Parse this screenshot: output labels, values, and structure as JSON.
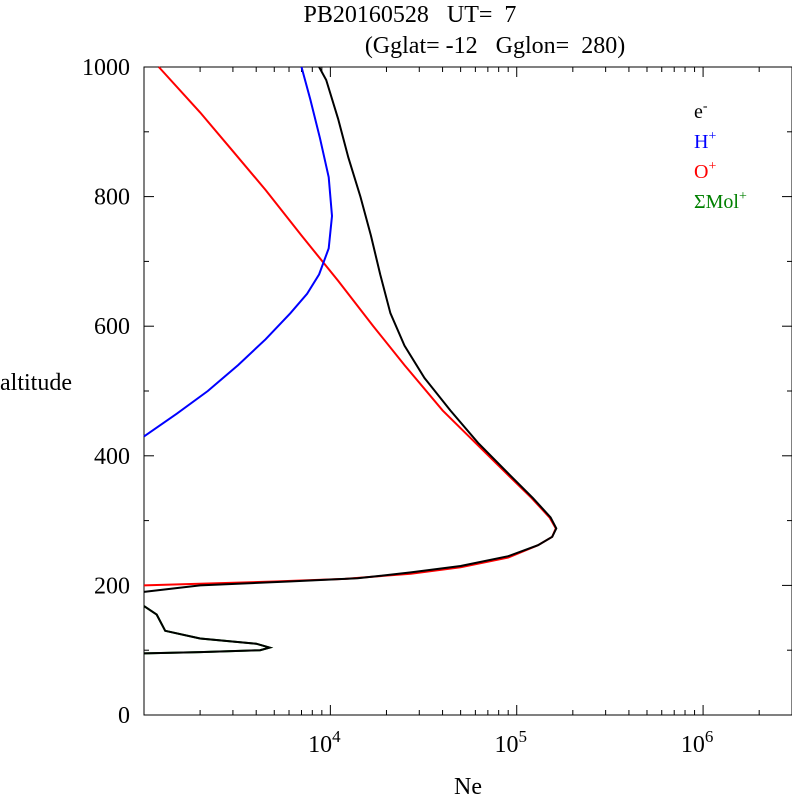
{
  "chart_data": {
    "type": "line",
    "title_line1": "PB20160528   UT=  7",
    "title_line2": "(Gglat= -12   Gglon=  280)",
    "xlabel": "Ne",
    "ylabel": "altitude",
    "x_scale": "log",
    "xlim": [
      1000,
      3000000
    ],
    "ylim": [
      0,
      1000
    ],
    "y_ticks": [
      0,
      200,
      400,
      600,
      800,
      1000
    ],
    "y_tick_labels": [
      "0",
      "200",
      "400",
      "600",
      "800",
      "1000"
    ],
    "x_ticks": [
      10000,
      100000,
      1000000
    ],
    "x_tick_labels": [
      {
        "base": "10",
        "exp": "4"
      },
      {
        "base": "10",
        "exp": "5"
      },
      {
        "base": "10",
        "exp": "6"
      }
    ],
    "legend": [
      {
        "base": "e",
        "sup": "-",
        "color": "#000000"
      },
      {
        "base": "H",
        "sup": "+",
        "color": "#0000ff"
      },
      {
        "base": "O",
        "sup": "+",
        "color": "#ff0000"
      },
      {
        "base": "ΣMol",
        "sup": "+",
        "color": "#008000"
      }
    ],
    "legend_position": "top-right",
    "series": [
      {
        "name": "ΣMol+",
        "color": "#008000",
        "points": [
          [
            1000,
            168
          ],
          [
            1170,
            155
          ],
          [
            1300,
            130
          ],
          [
            2000,
            118
          ],
          [
            4000,
            110
          ],
          [
            4720,
            104
          ],
          [
            4200,
            100
          ],
          [
            2000,
            97
          ],
          [
            1000,
            95
          ]
        ]
      },
      {
        "name": "O+",
        "color": "#ff0000",
        "points": [
          [
            1000,
            200
          ],
          [
            5000,
            206
          ],
          [
            12000,
            210
          ],
          [
            27000,
            218
          ],
          [
            50000,
            228
          ],
          [
            90000,
            243
          ],
          [
            130000,
            262
          ],
          [
            155000,
            275
          ],
          [
            162000,
            288
          ],
          [
            150000,
            305
          ],
          [
            120000,
            335
          ],
          [
            90000,
            370
          ],
          [
            60000,
            420
          ],
          [
            40000,
            470
          ],
          [
            25000,
            540
          ],
          [
            17000,
            600
          ],
          [
            11000,
            670
          ],
          [
            7000,
            740
          ],
          [
            4500,
            810
          ],
          [
            3000,
            870
          ],
          [
            2000,
            930
          ],
          [
            1200,
            1000
          ]
        ]
      },
      {
        "name": "H+",
        "color": "#0000ff",
        "points": [
          [
            1000,
            430
          ],
          [
            1500,
            465
          ],
          [
            2200,
            500
          ],
          [
            3200,
            540
          ],
          [
            4500,
            580
          ],
          [
            6100,
            620
          ],
          [
            7500,
            650
          ],
          [
            8700,
            680
          ],
          [
            9800,
            720
          ],
          [
            10200,
            770
          ],
          [
            9800,
            830
          ],
          [
            8800,
            890
          ],
          [
            7800,
            950
          ],
          [
            7000,
            1000
          ]
        ]
      },
      {
        "name": "e-",
        "color": "#000000",
        "points": [
          [
            1000,
            168
          ],
          [
            1170,
            155
          ],
          [
            1300,
            130
          ],
          [
            2000,
            118
          ],
          [
            4000,
            110
          ],
          [
            4720,
            104
          ],
          [
            4200,
            100
          ],
          [
            2000,
            97
          ],
          [
            1000,
            95
          ],
          null,
          [
            1000,
            190
          ],
          [
            2000,
            200
          ],
          [
            6000,
            206
          ],
          [
            14000,
            211
          ],
          [
            27000,
            220
          ],
          [
            50000,
            230
          ],
          [
            90000,
            245
          ],
          [
            130000,
            262
          ],
          [
            155000,
            275
          ],
          [
            163000,
            288
          ],
          [
            152000,
            305
          ],
          [
            122000,
            335
          ],
          [
            92000,
            370
          ],
          [
            62000,
            420
          ],
          [
            44000,
            470
          ],
          [
            32000,
            520
          ],
          [
            25000,
            570
          ],
          [
            21000,
            620
          ],
          [
            18500,
            680
          ],
          [
            16500,
            740
          ],
          [
            14500,
            800
          ],
          [
            12500,
            860
          ],
          [
            11000,
            920
          ],
          [
            9500,
            980
          ],
          [
            8700,
            1000
          ]
        ]
      }
    ]
  }
}
